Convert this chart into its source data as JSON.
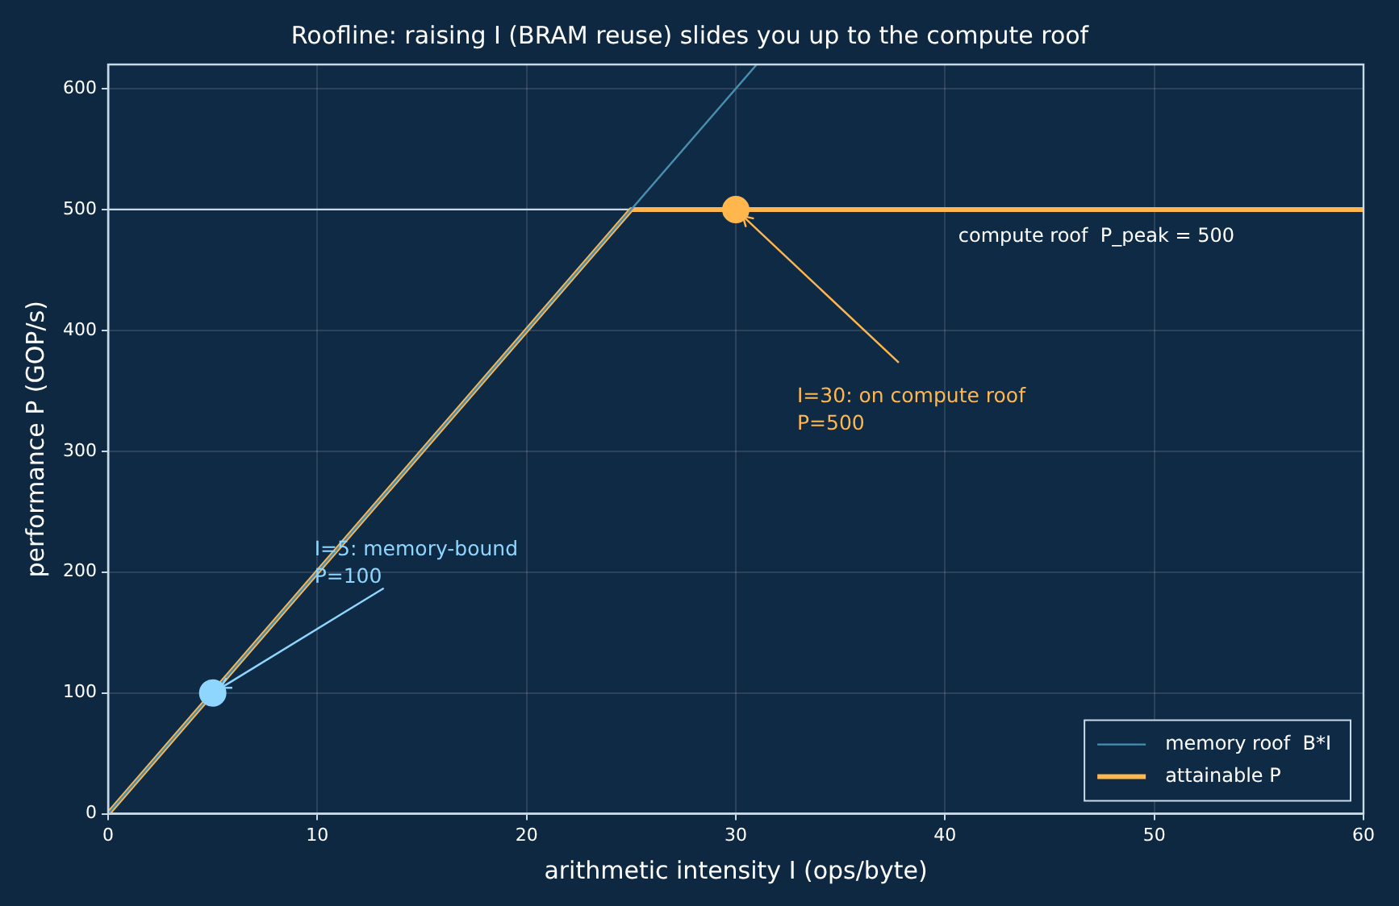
{
  "chart_data": {
    "type": "line",
    "title": "Roofline: raising I (BRAM reuse) slides you up to the compute roof",
    "xlabel": "arithmetic intensity I (ops/byte)",
    "ylabel": "performance P (GOP/s)",
    "xlim": [
      0,
      60
    ],
    "xticks": [
      0,
      10,
      20,
      30,
      40,
      50,
      60
    ],
    "ylim": [
      0,
      620
    ],
    "yticks": [
      0,
      100,
      200,
      300,
      400,
      500,
      600
    ],
    "grid": true,
    "legend": "bottom right",
    "line_style": "solid",
    "series": [
      {
        "name": "memory roof  B*I",
        "marker": "none",
        "color": "#4a8fb0",
        "x": [
          0,
          31
        ],
        "values": [
          0,
          620
        ]
      },
      {
        "name": "attainable P",
        "marker": "none",
        "color": "#ffb74d",
        "x": [
          0,
          25,
          60
        ],
        "values": [
          0,
          500,
          500
        ]
      },
      {
        "type": "scatter",
        "marker": "circle",
        "colors": [
          "#8fd6ff",
          "#ffb74d"
        ],
        "x": [
          5,
          30
        ],
        "values": [
          100,
          500
        ]
      }
    ],
    "ref_lines": [
      {
        "axis": "y",
        "value": 500,
        "label": "compute roof  P_peak = 500",
        "color": "#c8dae8"
      }
    ],
    "annotations": [
      {
        "text": "I=5: memory-bound\nP=100",
        "x": 5,
        "y": 100
      },
      {
        "text": "I=30: on compute roof\nP=500",
        "x": 30,
        "y": 500
      }
    ]
  }
}
